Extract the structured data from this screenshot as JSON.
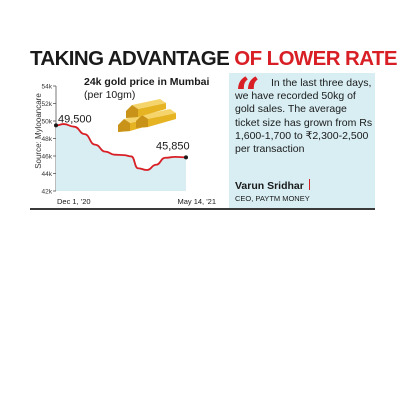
{
  "headline": {
    "part1": "TAKING ADVANTAGE ",
    "part2": "OF LOWER RATE"
  },
  "colors": {
    "accent": "#d91f26",
    "chart_fill": "#d8eef3",
    "quote_bg": "#d8eef3",
    "ink": "#1a1a1a",
    "gold": "#e6b422"
  },
  "chart_data": {
    "type": "area",
    "title": "24k gold price in Mumbai",
    "subtitle": "(per 10gm)",
    "source": "Source: Mylooancare",
    "ylim": [
      42000,
      54000
    ],
    "y_ticks": [
      {
        "value": 42000,
        "label": "42k"
      },
      {
        "value": 44000,
        "label": "44k"
      },
      {
        "value": 46000,
        "label": "46k"
      },
      {
        "value": 48000,
        "label": "48k"
      },
      {
        "value": 50000,
        "label": "50k"
      },
      {
        "value": 52000,
        "label": "52k"
      },
      {
        "value": 54000,
        "label": "54k"
      }
    ],
    "x_tick_labels": [
      "Dec 1, '20",
      "May 14, '21"
    ],
    "x": [
      0,
      0.06,
      0.14,
      0.22,
      0.3,
      0.38,
      0.45,
      0.52,
      0.58,
      0.63,
      0.7,
      0.77,
      0.84,
      0.92,
      1.0
    ],
    "values": [
      49500,
      49650,
      49350,
      48500,
      47300,
      46500,
      46150,
      46100,
      45950,
      44600,
      44400,
      45000,
      45800,
      45900,
      45850
    ],
    "annotations": [
      {
        "label": "49,500",
        "value": 49500,
        "at": "start"
      },
      {
        "label": "45,850",
        "value": 45850,
        "at": "end"
      }
    ],
    "grid": false,
    "icon": "gold-bars-icon"
  },
  "quote": {
    "text": "In the last three days, we have recorded 50kg of gold sales. The average ticket size has grown from Rs 1,600-1,700 to ₹2,300-2,500 per transaction",
    "author": "Varun Sridhar",
    "role": "CEO, PAYTM MONEY",
    "quote_icon": "quote-mark-icon"
  }
}
